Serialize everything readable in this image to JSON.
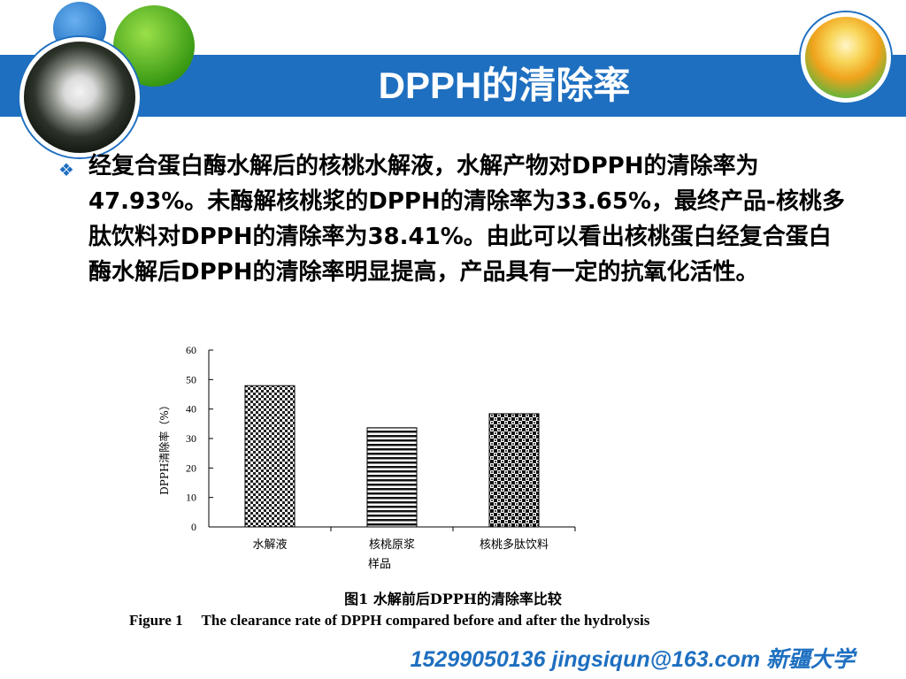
{
  "slide": {
    "title": "DPPH的清除率",
    "bullet_symbol": "❖",
    "paragraph": "经复合蛋白酶水解后的核桃水解液，水解产物对DPPH的清除率为47.93%。未酶解核桃浆的DPPH的清除率为33.65%，最终产品-核桃多肽饮料对DPPH的清除率为38.41%。由此可以看出核桃蛋白经复合蛋白酶水解后DPPH的清除率明显提高，产品具有一定的抗氧化活性。",
    "caption_cn": "图1 水解前后DPPH的清除率比较",
    "caption_en": "Figure 1     The clearance rate of DPPH compared before and after the hydrolysis",
    "footer": "15299050136   jingsiqun@163.com 新疆大学"
  },
  "colors": {
    "header_blue": "#1e6fc0",
    "text": "#000000"
  },
  "chart_data": {
    "type": "bar",
    "categories": [
      "水解液",
      "核桃原浆",
      "核桃多肽饮料"
    ],
    "values": [
      47.93,
      33.65,
      38.41
    ],
    "ylabel": "DPPH清除率（%）",
    "xlabel": "样品",
    "ylim": [
      0,
      60
    ],
    "yticks": [
      0,
      10,
      20,
      30,
      40,
      50,
      60
    ],
    "patterns": [
      "grid-dots",
      "horizontal-stripes",
      "checker"
    ],
    "grid": false,
    "legend": "none"
  }
}
